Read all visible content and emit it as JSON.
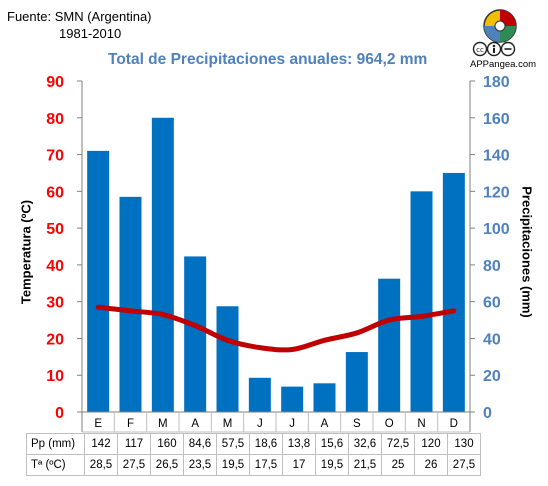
{
  "source": {
    "line1": "Fuente: SMN (Argentina)",
    "line2": "1981-2010"
  },
  "branding": {
    "site": "APPangea.com",
    "logo_icon": "puzzle-globe-icon",
    "license_icon": "creative-commons-icon"
  },
  "colors": {
    "bars": "#0070c0",
    "line": "#c00000",
    "left_axis": "#ff0000",
    "right_axis": "#4f81bd",
    "title": "#4f81bd"
  },
  "table": {
    "pp_label": "Pp (mm)",
    "t_label": "Tª (ºC)",
    "pp_values": [
      "142",
      "117",
      "160",
      "84,6",
      "57,5",
      "18,6",
      "13,8",
      "15,6",
      "32,6",
      "72,5",
      "120",
      "130"
    ],
    "t_values": [
      "28,5",
      "27,5",
      "26,5",
      "23,5",
      "19,5",
      "17,5",
      "17",
      "19,5",
      "21,5",
      "25",
      "26",
      "27,5"
    ]
  },
  "chart_data": {
    "type": "bar",
    "title": "Total de Precipitaciones anuales: 964,2 mm",
    "categories": [
      "E",
      "F",
      "M",
      "A",
      "M",
      "J",
      "J",
      "A",
      "S",
      "O",
      "N",
      "D"
    ],
    "series": [
      {
        "name": "Pp (mm)",
        "type": "bar",
        "axis": "right",
        "values": [
          142,
          117,
          160,
          84.6,
          57.5,
          18.6,
          13.8,
          15.6,
          32.6,
          72.5,
          120,
          130
        ]
      },
      {
        "name": "Tª (ºC)",
        "type": "line",
        "axis": "left",
        "values": [
          28.5,
          27.5,
          26.5,
          23.5,
          19.5,
          17.5,
          17,
          19.5,
          21.5,
          25,
          26,
          27.5
        ]
      }
    ],
    "y_left": {
      "label": "Temperatura (ºC)",
      "range": [
        0,
        90
      ],
      "ticks": [
        0,
        10,
        20,
        30,
        40,
        50,
        60,
        70,
        80,
        90
      ]
    },
    "y_right": {
      "label": "Precipitaciones (mm)",
      "range": [
        0,
        180
      ],
      "ticks": [
        0,
        20,
        40,
        60,
        80,
        100,
        120,
        140,
        160,
        180
      ]
    },
    "grid": false,
    "legend": "none"
  }
}
